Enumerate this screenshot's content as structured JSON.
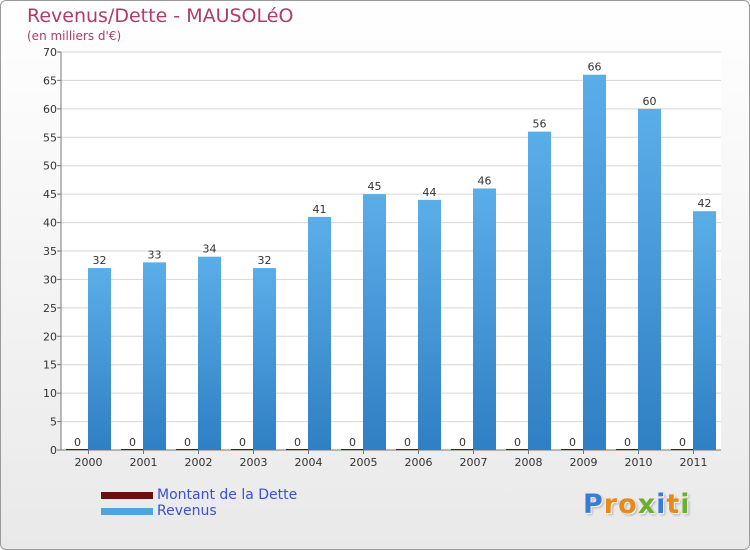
{
  "title": "Revenus/Dette - MAUSOLéO",
  "subtitle": "(en milliers d'€)",
  "logo": "Proxiti",
  "colors": {
    "dette": "#6b0f12",
    "revenus": "#4fa3df",
    "title": "#b03a6a",
    "legend_text": "#3a4fd9"
  },
  "chart_data": {
    "type": "bar",
    "categories": [
      "2000",
      "2001",
      "2002",
      "2003",
      "2004",
      "2005",
      "2006",
      "2007",
      "2008",
      "2009",
      "2010",
      "2011"
    ],
    "series": [
      {
        "name": "Montant de la Dette",
        "color": "#6b0f12",
        "values": [
          0,
          0,
          0,
          0,
          0,
          0,
          0,
          0,
          0,
          0,
          0,
          0
        ]
      },
      {
        "name": "Revenus",
        "color": "#4fa3df",
        "values": [
          32,
          33,
          34,
          32,
          41,
          45,
          44,
          46,
          56,
          66,
          60,
          42
        ]
      }
    ],
    "ylim": [
      0,
      70
    ],
    "ytick_step": 5,
    "grid": true,
    "legend": "bottom-left"
  }
}
